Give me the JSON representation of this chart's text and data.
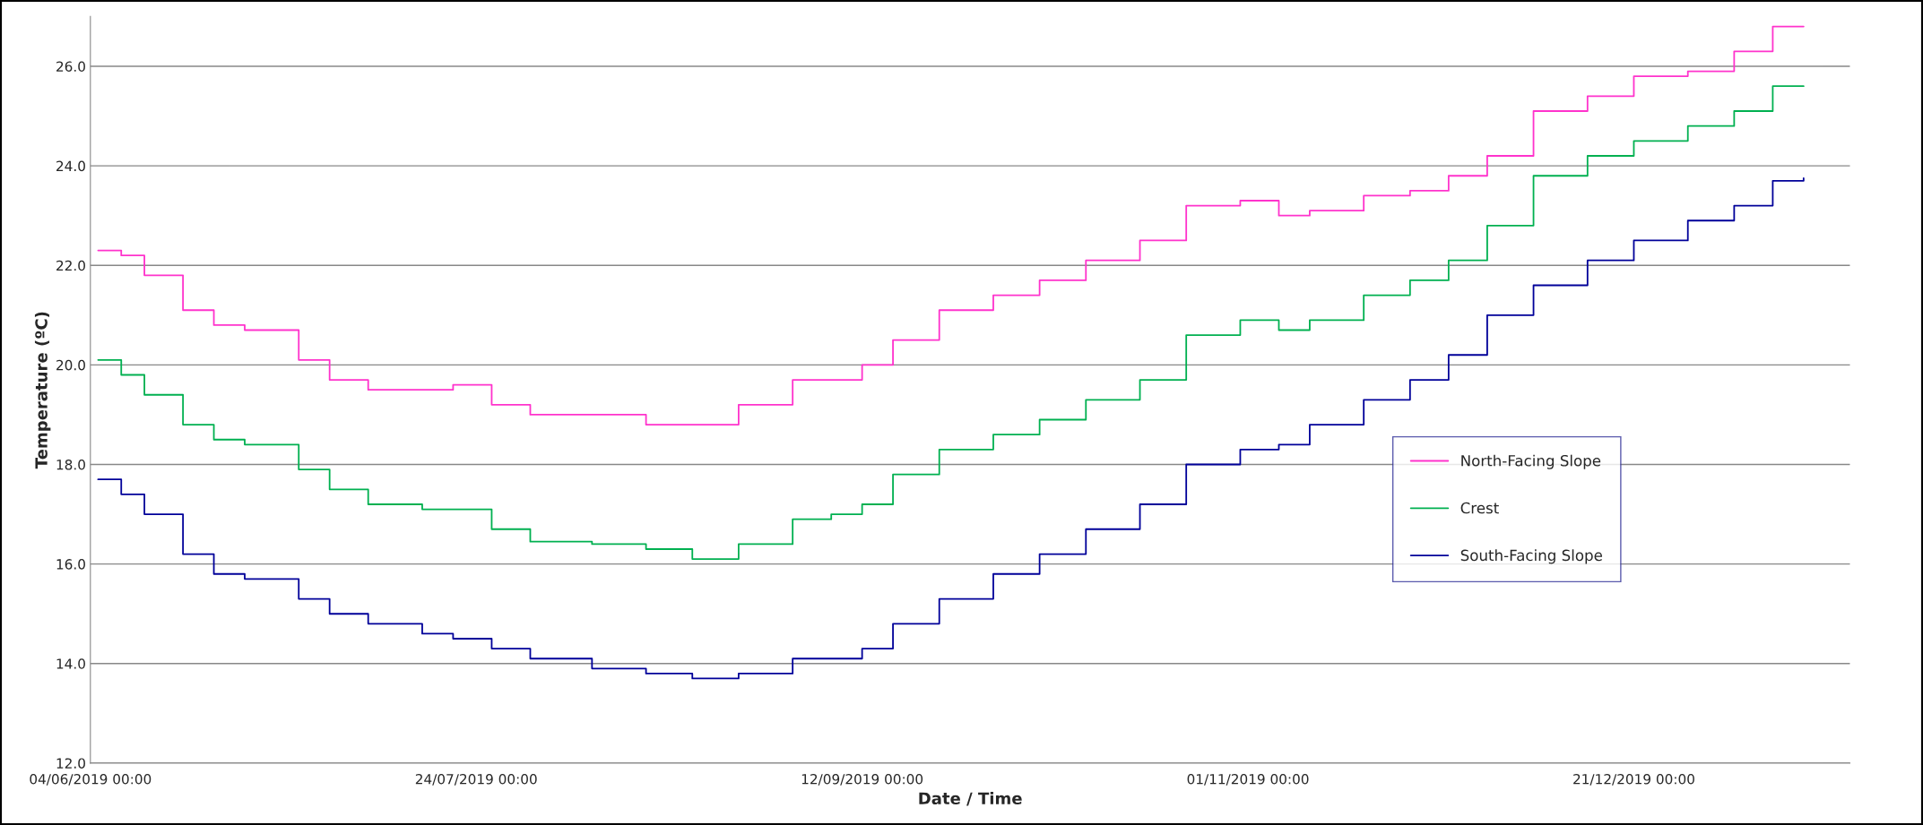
{
  "chart_data": {
    "type": "step",
    "xlabel": "Date / Time",
    "ylabel": "Temperature (ºC)",
    "x": [
      "2019-06-05",
      "2019-06-08",
      "2019-06-11",
      "2019-06-16",
      "2019-06-20",
      "2019-06-24",
      "2019-07-01",
      "2019-07-05",
      "2019-07-10",
      "2019-07-17",
      "2019-07-21",
      "2019-07-26",
      "2019-07-31",
      "2019-08-08",
      "2019-08-15",
      "2019-08-21",
      "2019-08-27",
      "2019-09-03",
      "2019-09-08",
      "2019-09-12",
      "2019-09-16",
      "2019-09-22",
      "2019-09-29",
      "2019-10-05",
      "2019-10-11",
      "2019-10-18",
      "2019-10-24",
      "2019-10-31",
      "2019-11-05",
      "2019-11-09",
      "2019-11-16",
      "2019-11-22",
      "2019-11-27",
      "2019-12-02",
      "2019-12-08",
      "2019-12-15",
      "2019-12-21",
      "2019-12-28",
      "2020-01-03",
      "2020-01-08",
      "2020-01-12"
    ],
    "series": [
      {
        "name": "North-Facing Slope",
        "color": "#ff33cc",
        "values": [
          22.3,
          22.2,
          21.8,
          21.1,
          20.8,
          20.7,
          20.1,
          19.7,
          19.5,
          19.5,
          19.6,
          19.2,
          19.0,
          19.0,
          18.8,
          18.8,
          19.2,
          19.7,
          19.7,
          20.0,
          20.5,
          21.1,
          21.4,
          21.7,
          22.1,
          22.5,
          23.2,
          23.3,
          23.0,
          23.1,
          23.4,
          23.5,
          23.8,
          24.2,
          25.1,
          25.4,
          25.8,
          25.9,
          26.3,
          26.8,
          26.8
        ]
      },
      {
        "name": "Crest",
        "color": "#00b050",
        "values": [
          20.1,
          19.8,
          19.4,
          18.8,
          18.5,
          18.4,
          17.9,
          17.5,
          17.2,
          17.1,
          17.1,
          16.7,
          16.45,
          16.4,
          16.3,
          16.1,
          16.4,
          16.9,
          17.0,
          17.2,
          17.8,
          18.3,
          18.6,
          18.9,
          19.3,
          19.7,
          20.6,
          20.9,
          20.7,
          20.9,
          21.4,
          21.7,
          22.1,
          22.8,
          23.8,
          24.2,
          24.5,
          24.8,
          25.1,
          25.6,
          25.6
        ]
      },
      {
        "name": "South-Facing Slope",
        "color": "#000099",
        "values": [
          17.7,
          17.4,
          17.0,
          16.2,
          15.8,
          15.7,
          15.3,
          15.0,
          14.8,
          14.6,
          14.5,
          14.3,
          14.1,
          13.9,
          13.8,
          13.7,
          13.8,
          14.1,
          14.1,
          14.3,
          14.8,
          15.3,
          15.8,
          16.2,
          16.7,
          17.2,
          18.0,
          18.3,
          18.4,
          18.8,
          19.3,
          19.7,
          20.2,
          21.0,
          21.6,
          22.1,
          22.5,
          22.9,
          23.2,
          23.7,
          23.75
        ]
      }
    ],
    "xlim": [
      "2019-06-04",
      "2020-01-18"
    ],
    "xticks": [
      {
        "value": "2019-06-04",
        "label": "04/06/2019 00:00"
      },
      {
        "value": "2019-07-24",
        "label": "24/07/2019 00:00"
      },
      {
        "value": "2019-09-12",
        "label": "12/09/2019 00:00"
      },
      {
        "value": "2019-11-01",
        "label": "01/11/2019 00:00"
      },
      {
        "value": "2019-12-21",
        "label": "21/12/2019 00:00"
      }
    ],
    "ylim": [
      12,
      27
    ],
    "yticks": [
      {
        "value": 12,
        "label": "12.0"
      },
      {
        "value": 14,
        "label": "14.0"
      },
      {
        "value": 16,
        "label": "16.0"
      },
      {
        "value": 18,
        "label": "18.0"
      },
      {
        "value": 20,
        "label": "20.0"
      },
      {
        "value": 22,
        "label": "22.0"
      },
      {
        "value": 24,
        "label": "24.0"
      },
      {
        "value": 26,
        "label": "26.0"
      }
    ],
    "grid": "y",
    "legend": "right",
    "line_style": "solid"
  }
}
